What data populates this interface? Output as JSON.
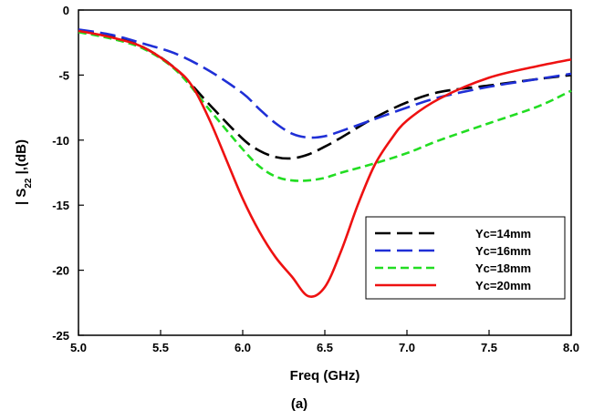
{
  "chart_data": {
    "type": "line",
    "title": "",
    "xlabel": "Freq (GHz)",
    "ylabel_main": "| S",
    "ylabel_sub": "22",
    "ylabel_tail": " |,(dB)",
    "caption": "(a)",
    "xlim": [
      5.0,
      8.0
    ],
    "ylim": [
      -25,
      0
    ],
    "xticks": [
      "5.0",
      "5.5",
      "6.0",
      "6.5",
      "7.0",
      "7.5",
      "8.0"
    ],
    "yticks": [
      "0",
      "-5",
      "-10",
      "-15",
      "-20",
      "-25"
    ],
    "grid": false,
    "legend_position": "bottom-right",
    "series": [
      {
        "name": "Yc=14mm",
        "color": "#000000",
        "dash": "long-dash",
        "x": [
          5.0,
          5.2,
          5.4,
          5.6,
          5.8,
          6.0,
          6.1,
          6.2,
          6.3,
          6.4,
          6.5,
          6.6,
          6.8,
          7.0,
          7.2,
          7.5,
          7.8,
          8.0
        ],
        "y": [
          -1.6,
          -2.0,
          -2.9,
          -4.6,
          -7.3,
          -9.9,
          -10.8,
          -11.3,
          -11.4,
          -11.1,
          -10.5,
          -9.8,
          -8.3,
          -7.1,
          -6.3,
          -5.8,
          -5.3,
          -5.0
        ]
      },
      {
        "name": "Yc=16mm",
        "color": "#1f2fd6",
        "dash": "long-dash",
        "x": [
          5.0,
          5.2,
          5.4,
          5.6,
          5.8,
          6.0,
          6.1,
          6.2,
          6.3,
          6.4,
          6.5,
          6.6,
          6.8,
          7.0,
          7.2,
          7.5,
          7.8,
          8.0
        ],
        "y": [
          -1.5,
          -1.9,
          -2.6,
          -3.4,
          -4.7,
          -6.4,
          -7.6,
          -8.7,
          -9.5,
          -9.8,
          -9.7,
          -9.3,
          -8.4,
          -7.5,
          -6.7,
          -5.9,
          -5.3,
          -4.9
        ]
      },
      {
        "name": "Yc=18mm",
        "color": "#22dd22",
        "dash": "short-dash",
        "x": [
          5.0,
          5.2,
          5.4,
          5.6,
          5.8,
          6.0,
          6.1,
          6.2,
          6.3,
          6.4,
          6.5,
          6.6,
          6.8,
          7.0,
          7.2,
          7.5,
          7.8,
          8.0
        ],
        "y": [
          -1.7,
          -2.2,
          -3.0,
          -4.7,
          -7.7,
          -10.7,
          -12.0,
          -12.8,
          -13.1,
          -13.1,
          -12.9,
          -12.5,
          -11.8,
          -11.0,
          -10.0,
          -8.7,
          -7.4,
          -6.2
        ]
      },
      {
        "name": "Yc=20mm",
        "color": "#ee1111",
        "dash": "solid",
        "x": [
          5.0,
          5.2,
          5.4,
          5.6,
          5.7,
          5.8,
          5.9,
          6.0,
          6.1,
          6.2,
          6.3,
          6.4,
          6.5,
          6.6,
          6.7,
          6.8,
          6.9,
          7.0,
          7.2,
          7.5,
          7.8,
          8.0
        ],
        "y": [
          -1.6,
          -2.1,
          -2.9,
          -4.6,
          -6.0,
          -8.5,
          -11.5,
          -14.5,
          -17.0,
          -19.0,
          -20.5,
          -22.0,
          -21.3,
          -18.5,
          -15.0,
          -12.0,
          -10.0,
          -8.5,
          -6.8,
          -5.2,
          -4.3,
          -3.8
        ]
      }
    ]
  }
}
